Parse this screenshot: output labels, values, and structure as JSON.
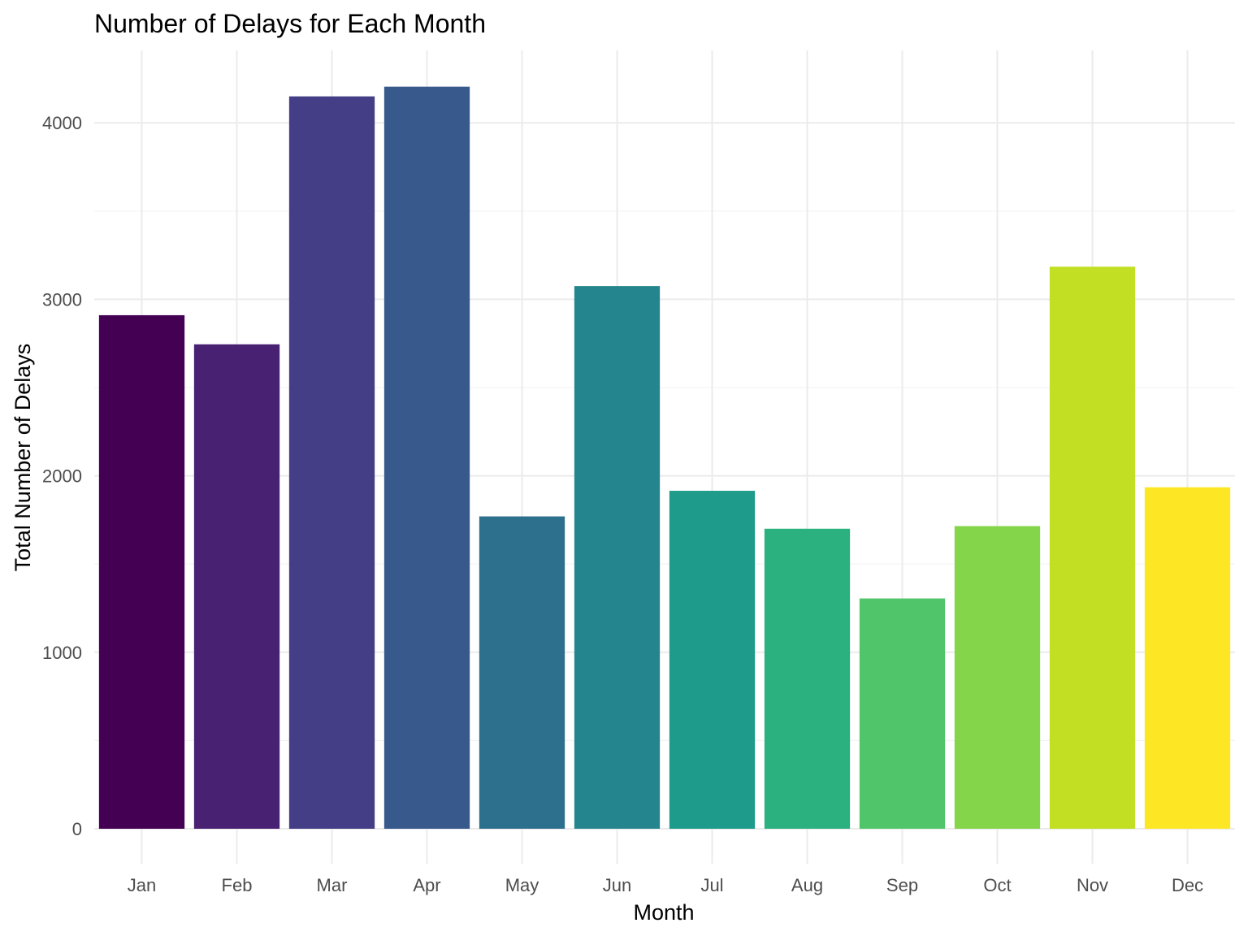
{
  "chart_data": {
    "type": "bar",
    "title": "Number of Delays for Each Month",
    "xlabel": "Month",
    "ylabel": "Total Number of Delays",
    "categories": [
      "Jan",
      "Feb",
      "Mar",
      "Apr",
      "May",
      "Jun",
      "Jul",
      "Aug",
      "Sep",
      "Oct",
      "Nov",
      "Dec"
    ],
    "values": [
      2910,
      2745,
      4150,
      4205,
      1770,
      3075,
      1915,
      1700,
      1305,
      1715,
      3185,
      1935
    ],
    "colors": [
      "#440154",
      "#482173",
      "#433E85",
      "#38598C",
      "#2D708E",
      "#25858E",
      "#1E9B8A",
      "#2BB07F",
      "#51C56A",
      "#85D54A",
      "#C2DF23",
      "#FDE725"
    ],
    "ylim": [
      0,
      4350
    ],
    "yticks": [
      0,
      1000,
      2000,
      3000,
      4000
    ],
    "yticks_minor": [
      500,
      1500,
      2500,
      3500
    ],
    "grid": true,
    "legend": "none"
  }
}
